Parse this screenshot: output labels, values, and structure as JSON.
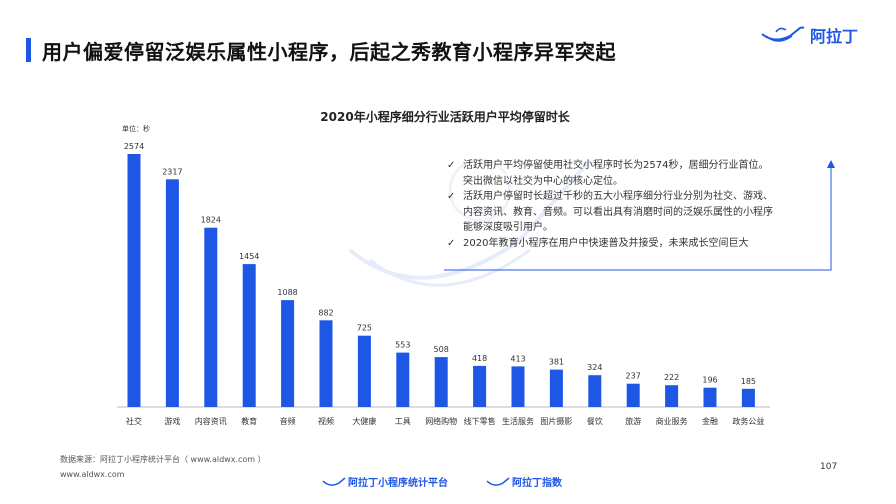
{
  "header": {
    "title": "用户偏爱停留泛娱乐属性小程序，后起之秀教育小程序异军突起",
    "logo_text": "阿拉丁"
  },
  "chart_data": {
    "type": "bar",
    "title": "2020年小程序细分行业活跃用户平均停留时长",
    "unit_label": "单位：秒",
    "categories": [
      "社交",
      "游戏",
      "内容资讯",
      "教育",
      "音频",
      "视频",
      "大健康",
      "工具",
      "网络购物",
      "线下零售",
      "生活服务",
      "图片摄影",
      "餐饮",
      "旅游",
      "商业服务",
      "金融",
      "政务公益"
    ],
    "values": [
      2574,
      2317,
      1824,
      1454,
      1088,
      882,
      725,
      553,
      508,
      418,
      413,
      381,
      324,
      237,
      222,
      196,
      185
    ],
    "ylim": [
      0,
      2574
    ],
    "bar_color": "#1f57e5",
    "grid": false
  },
  "callout": {
    "items": [
      {
        "check": "✓",
        "lines": [
          "活跃用户平均停留使用社交小程序时长为2574秒，居细分行业首位。",
          "突出微信以社交为中心的核心定位。"
        ]
      },
      {
        "check": "✓",
        "lines": [
          "活跃用户停留时长超过千秒的五大小程序细分行业分别为社交、游戏、",
          "内容资讯、教育、音频。可以看出具有消磨时间的泛娱乐属性的小程序",
          "能够深度吸引用户。"
        ]
      },
      {
        "check": "✓",
        "lines": [
          "2020年教育小程序在用户中快速普及并接受，未来成长空间巨大"
        ]
      }
    ]
  },
  "footer": {
    "source": "数据来源：阿拉丁小程序统计平台（ www.aldwx.com ）",
    "url": "www.aldwx.com",
    "page_number": "107",
    "brand_1": "阿拉丁小程序统计平台",
    "brand_2": "阿拉丁指数"
  },
  "colors": {
    "accent": "#1f57e5"
  }
}
